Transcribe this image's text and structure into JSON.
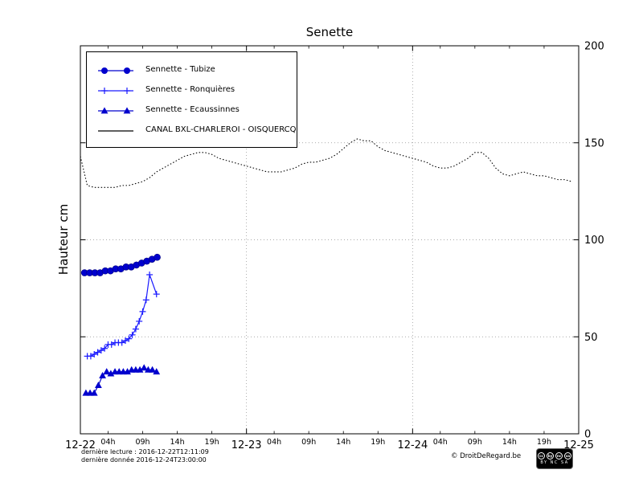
{
  "title": "Senette",
  "ylabel": "Hauteur cm",
  "footer": {
    "last_read": "dernière lecture : 2016-12-22T12:11:09",
    "last_data": "dernière donnée  2016-12-24T23:00:00",
    "copyright": "© DroitDeRegard.be",
    "cc_icons": [
      "cc",
      "by",
      "nc",
      "sa"
    ],
    "cc_text": "BY NC SA"
  },
  "chart_data": {
    "type": "line",
    "title": "Senette",
    "xlabel": "",
    "ylabel": "Hauteur cm",
    "ylim": [
      0,
      200
    ],
    "yticks": [
      0,
      50,
      100,
      150,
      200
    ],
    "xlim_hours": [
      0,
      72
    ],
    "x_major_ticks": [
      {
        "h": 0,
        "label": "12-22"
      },
      {
        "h": 24,
        "label": "12-23"
      },
      {
        "h": 48,
        "label": "12-24"
      },
      {
        "h": 72,
        "label": "12-25"
      }
    ],
    "x_minor_ticks": [
      {
        "h": 4,
        "label": "04h"
      },
      {
        "h": 9,
        "label": "09h"
      },
      {
        "h": 14,
        "label": "14h"
      },
      {
        "h": 19,
        "label": "19h"
      },
      {
        "h": 28,
        "label": "04h"
      },
      {
        "h": 33,
        "label": "09h"
      },
      {
        "h": 38,
        "label": "14h"
      },
      {
        "h": 43,
        "label": "19h"
      },
      {
        "h": 52,
        "label": "04h"
      },
      {
        "h": 57,
        "label": "09h"
      },
      {
        "h": 62,
        "label": "14h"
      },
      {
        "h": 67,
        "label": "19h"
      }
    ],
    "grid": {
      "vertical_hours": [
        24,
        48
      ],
      "horizontal_values": [
        50,
        100,
        150
      ]
    },
    "legend_position": "upper left",
    "series": [
      {
        "name": "Sennette - Tubize",
        "color": "#0000cd",
        "marker": "circle",
        "line_style": "solid",
        "x": [
          0.6,
          1.35,
          2.1,
          2.85,
          3.6,
          4.35,
          5.1,
          5.85,
          6.6,
          7.35,
          8.1,
          8.85,
          9.6,
          10.35,
          11.1
        ],
        "y": [
          83,
          83,
          83,
          83,
          84,
          84,
          85,
          85,
          86,
          86,
          87,
          88,
          89,
          90,
          91
        ]
      },
      {
        "name": "Sennette - Ronquières",
        "color": "#1a1aff",
        "marker": "plus",
        "line_style": "solid",
        "x": [
          1,
          1.5,
          2,
          2.5,
          3,
          3.5,
          4,
          4.5,
          5,
          5.5,
          6,
          6.5,
          7,
          7.5,
          8,
          8.5,
          9,
          9.5,
          10,
          11
        ],
        "y": [
          40,
          40,
          41,
          42,
          43,
          44,
          46,
          46,
          47,
          47,
          47,
          48,
          49,
          51,
          54,
          58,
          63,
          69,
          82,
          72
        ]
      },
      {
        "name": "Sennette - Ecaussinnes",
        "color": "#0000cd",
        "marker": "triangle",
        "line_style": "solid",
        "x": [
          0.8,
          1.4,
          2,
          2.6,
          3.2,
          3.8,
          4.4,
          5,
          5.6,
          6.2,
          6.8,
          7.4,
          8,
          8.6,
          9.2,
          9.8,
          10.4,
          11
        ],
        "y": [
          21,
          21,
          21,
          25,
          30,
          32,
          31,
          32,
          32,
          32,
          32,
          33,
          33,
          33,
          34,
          33,
          33,
          32
        ]
      },
      {
        "name": "CANAL BXL-CHARLEROI - OISQUERCQ",
        "color": "#000000",
        "marker": "none",
        "line_style": "dotted",
        "x": [
          0,
          1,
          2,
          3,
          4,
          5,
          6,
          7,
          8,
          9,
          10,
          11,
          12,
          13,
          14,
          15,
          16,
          17,
          18,
          19,
          20,
          21,
          22,
          23,
          24,
          25,
          26,
          27,
          28,
          29,
          30,
          31,
          32,
          33,
          34,
          35,
          36,
          37,
          38,
          39,
          40,
          41,
          42,
          43,
          44,
          45,
          46,
          47,
          48,
          49,
          50,
          51,
          52,
          53,
          54,
          55,
          56,
          57,
          58,
          59,
          60,
          61,
          62,
          63,
          64,
          65,
          66,
          67,
          68,
          69,
          70,
          71
        ],
        "y": [
          143,
          128,
          127,
          127,
          127,
          127,
          128,
          128,
          129,
          130,
          132,
          135,
          137,
          139,
          141,
          143,
          144,
          145,
          145,
          144,
          142,
          141,
          140,
          139,
          138,
          137,
          136,
          135,
          135,
          135,
          136,
          137,
          139,
          140,
          140,
          141,
          142,
          144,
          147,
          150,
          152,
          151,
          151,
          148,
          146,
          145,
          144,
          143,
          142,
          141,
          140,
          138,
          137,
          137,
          138,
          140,
          142,
          145,
          145,
          142,
          137,
          134,
          133,
          134,
          135,
          134,
          133,
          133,
          132,
          131,
          131,
          130
        ]
      }
    ]
  }
}
